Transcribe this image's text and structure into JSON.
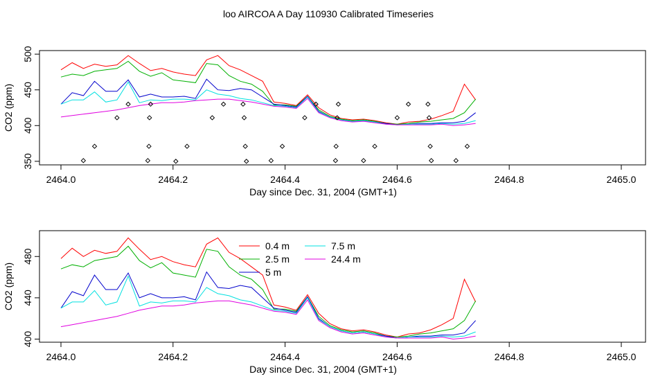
{
  "figure": {
    "title": "loo AIRCOA A  Day 110930  Calibrated Timeseries"
  },
  "colors": {
    "0.4 m": "#ff0000",
    "2.5 m": "#00b000",
    "5 m": "#0000cc",
    "7.5 m": "#00e0e0",
    "24.4 m": "#e000e0",
    "points": "#000000"
  },
  "chart_data": [
    {
      "type": "line",
      "panel": "top",
      "xlabel": "Day since Dec. 31, 2004 (GMT+1)",
      "ylabel": "CO2 (ppm)",
      "xlim": [
        2464.0,
        2465.0
      ],
      "ylim": [
        345,
        505
      ],
      "xticks": [
        "2464.0",
        "2464.2",
        "2464.4",
        "2464.6",
        "2464.8",
        "2465.0"
      ],
      "yticks": [
        "350",
        "400",
        "450",
        "500"
      ],
      "x": [
        2464.0,
        2464.02,
        2464.04,
        2464.06,
        2464.08,
        2464.1,
        2464.12,
        2464.14,
        2464.16,
        2464.18,
        2464.2,
        2464.22,
        2464.24,
        2464.26,
        2464.28,
        2464.3,
        2464.32,
        2464.34,
        2464.36,
        2464.38,
        2464.4,
        2464.42,
        2464.44,
        2464.46,
        2464.48,
        2464.5,
        2464.52,
        2464.54,
        2464.56,
        2464.58,
        2464.6,
        2464.62,
        2464.64,
        2464.66,
        2464.68,
        2464.7,
        2464.72,
        2464.74
      ],
      "series": [
        {
          "name": "0.4 m",
          "values": [
            478,
            488,
            480,
            486,
            483,
            485,
            498,
            487,
            477,
            480,
            475,
            472,
            470,
            492,
            498,
            484,
            478,
            470,
            462,
            433,
            431,
            428,
            443,
            425,
            415,
            410,
            408,
            409,
            407,
            404,
            402,
            405,
            406,
            409,
            414,
            420,
            458,
            436
          ]
        },
        {
          "name": "2.5 m",
          "values": [
            468,
            472,
            470,
            476,
            478,
            480,
            490,
            476,
            469,
            474,
            464,
            462,
            460,
            487,
            485,
            470,
            462,
            458,
            448,
            429,
            429,
            427,
            441,
            422,
            413,
            409,
            407,
            408,
            406,
            403,
            402,
            403,
            405,
            406,
            408,
            410,
            418,
            437
          ]
        },
        {
          "name": "5 m",
          "values": [
            430,
            446,
            442,
            462,
            448,
            448,
            464,
            440,
            444,
            440,
            440,
            441,
            438,
            465,
            450,
            449,
            452,
            450,
            440,
            430,
            428,
            426,
            441,
            420,
            412,
            408,
            406,
            407,
            405,
            403,
            401,
            402,
            403,
            403,
            404,
            404,
            406,
            418
          ]
        },
        {
          "name": "7.5 m",
          "values": [
            430,
            436,
            436,
            447,
            433,
            436,
            461,
            432,
            436,
            435,
            437,
            437,
            436,
            450,
            444,
            442,
            438,
            436,
            432,
            428,
            427,
            425,
            440,
            419,
            412,
            408,
            406,
            407,
            405,
            402,
            401,
            402,
            402,
            402,
            403,
            402,
            403,
            407
          ]
        },
        {
          "name": "24.4 m",
          "values": [
            412,
            414,
            416,
            418,
            420,
            422,
            425,
            428,
            430,
            432,
            432,
            433,
            435,
            436,
            437,
            437,
            435,
            433,
            430,
            427,
            426,
            424,
            438,
            418,
            411,
            407,
            405,
            406,
            404,
            402,
            401,
            401,
            401,
            401,
            402,
            400,
            401,
            403
          ]
        }
      ],
      "points": [
        {
          "x": 2464.04,
          "y": 351
        },
        {
          "x": 2464.06,
          "y": 371
        },
        {
          "x": 2464.1,
          "y": 411
        },
        {
          "x": 2464.12,
          "y": 430
        },
        {
          "x": 2464.155,
          "y": 351
        },
        {
          "x": 2464.157,
          "y": 371
        },
        {
          "x": 2464.158,
          "y": 411
        },
        {
          "x": 2464.16,
          "y": 430
        },
        {
          "x": 2464.205,
          "y": 350
        },
        {
          "x": 2464.225,
          "y": 371
        },
        {
          "x": 2464.27,
          "y": 411
        },
        {
          "x": 2464.29,
          "y": 430
        },
        {
          "x": 2464.325,
          "y": 430
        },
        {
          "x": 2464.327,
          "y": 411
        },
        {
          "x": 2464.329,
          "y": 371
        },
        {
          "x": 2464.331,
          "y": 350
        },
        {
          "x": 2464.375,
          "y": 351
        },
        {
          "x": 2464.395,
          "y": 371
        },
        {
          "x": 2464.435,
          "y": 411
        },
        {
          "x": 2464.455,
          "y": 430
        },
        {
          "x": 2464.49,
          "y": 351
        },
        {
          "x": 2464.491,
          "y": 371
        },
        {
          "x": 2464.493,
          "y": 411
        },
        {
          "x": 2464.495,
          "y": 430
        },
        {
          "x": 2464.54,
          "y": 351
        },
        {
          "x": 2464.56,
          "y": 371
        },
        {
          "x": 2464.6,
          "y": 411
        },
        {
          "x": 2464.62,
          "y": 430
        },
        {
          "x": 2464.655,
          "y": 430
        },
        {
          "x": 2464.657,
          "y": 411
        },
        {
          "x": 2464.659,
          "y": 371
        },
        {
          "x": 2464.661,
          "y": 351
        },
        {
          "x": 2464.705,
          "y": 351
        },
        {
          "x": 2464.725,
          "y": 371
        }
      ]
    },
    {
      "type": "line",
      "panel": "bottom",
      "xlabel": "Day since Dec. 31, 2004 (GMT+1)",
      "ylabel": "CO2 (ppm)",
      "xlim": [
        2464.0,
        2465.0
      ],
      "ylim": [
        397,
        505
      ],
      "xticks": [
        "2464.0",
        "2464.2",
        "2464.4",
        "2464.6",
        "2464.8",
        "2465.0"
      ],
      "yticks": [
        "400",
        "440",
        "480"
      ],
      "legend": {
        "placement": "top-center",
        "entries": [
          "0.4 m",
          "2.5 m",
          "5 m",
          "7.5 m",
          "24.4 m"
        ]
      },
      "x": [
        2464.0,
        2464.02,
        2464.04,
        2464.06,
        2464.08,
        2464.1,
        2464.12,
        2464.14,
        2464.16,
        2464.18,
        2464.2,
        2464.22,
        2464.24,
        2464.26,
        2464.28,
        2464.3,
        2464.32,
        2464.34,
        2464.36,
        2464.38,
        2464.4,
        2464.42,
        2464.44,
        2464.46,
        2464.48,
        2464.5,
        2464.52,
        2464.54,
        2464.56,
        2464.58,
        2464.6,
        2464.62,
        2464.64,
        2464.66,
        2464.68,
        2464.7,
        2464.72,
        2464.74
      ],
      "series": [
        {
          "name": "0.4 m",
          "values": [
            478,
            488,
            480,
            486,
            483,
            485,
            498,
            487,
            477,
            480,
            475,
            472,
            470,
            492,
            498,
            484,
            478,
            470,
            462,
            433,
            431,
            428,
            443,
            425,
            415,
            410,
            408,
            409,
            407,
            404,
            402,
            405,
            406,
            409,
            414,
            420,
            458,
            436
          ]
        },
        {
          "name": "2.5 m",
          "values": [
            468,
            472,
            470,
            476,
            478,
            480,
            490,
            476,
            469,
            474,
            464,
            462,
            460,
            487,
            485,
            470,
            462,
            458,
            448,
            429,
            429,
            427,
            441,
            422,
            413,
            409,
            407,
            408,
            406,
            403,
            402,
            403,
            405,
            406,
            408,
            410,
            418,
            437
          ]
        },
        {
          "name": "5 m",
          "values": [
            430,
            446,
            442,
            462,
            448,
            448,
            464,
            440,
            444,
            440,
            440,
            441,
            438,
            465,
            450,
            449,
            452,
            450,
            440,
            430,
            428,
            426,
            441,
            420,
            412,
            408,
            406,
            407,
            405,
            403,
            401,
            402,
            403,
            403,
            404,
            404,
            406,
            418
          ]
        },
        {
          "name": "7.5 m",
          "values": [
            430,
            436,
            436,
            447,
            433,
            436,
            461,
            432,
            436,
            435,
            437,
            437,
            436,
            450,
            444,
            442,
            438,
            436,
            432,
            428,
            427,
            425,
            440,
            419,
            412,
            408,
            406,
            407,
            405,
            402,
            401,
            402,
            402,
            402,
            403,
            402,
            403,
            407
          ]
        },
        {
          "name": "24.4 m",
          "values": [
            412,
            414,
            416,
            418,
            420,
            422,
            425,
            428,
            430,
            432,
            432,
            433,
            435,
            436,
            437,
            437,
            435,
            433,
            430,
            427,
            426,
            424,
            438,
            418,
            411,
            407,
            405,
            406,
            404,
            402,
            401,
            401,
            401,
            401,
            402,
            400,
            401,
            403
          ]
        }
      ]
    }
  ]
}
